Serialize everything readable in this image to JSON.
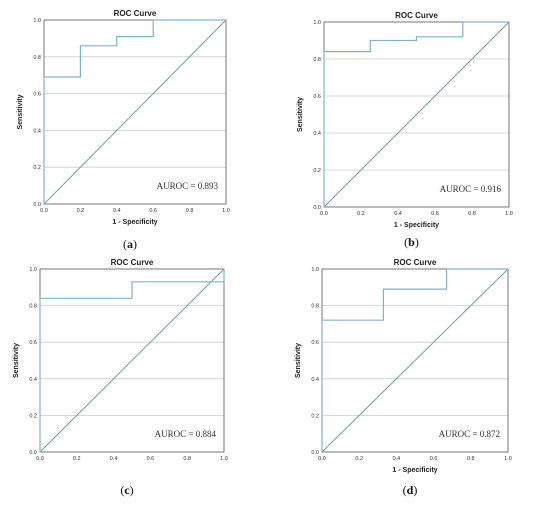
{
  "chart_data": [
    {
      "type": "line",
      "panel": "a",
      "title": "ROC Curve",
      "xlabel": "1 - Specificity",
      "ylabel": "Sensitivity",
      "xlim": [
        0,
        1
      ],
      "ylim": [
        0,
        1
      ],
      "xticks": [
        "0.0",
        "0.2",
        "0.4",
        "0.6",
        "0.8",
        "1.0"
      ],
      "yticks": [
        "0.0",
        "0.2",
        "0.4",
        "0.6",
        "0.8",
        "1.0"
      ],
      "grid": "horizontal",
      "roc": {
        "x": [
          0,
          0,
          0.2,
          0.2,
          0.4,
          0.4,
          0.6,
          0.6,
          1.0
        ],
        "y": [
          0,
          0.69,
          0.69,
          0.86,
          0.86,
          0.91,
          0.91,
          1.0,
          1.0
        ]
      },
      "reference": {
        "x": [
          0,
          1
        ],
        "y": [
          0,
          1
        ]
      },
      "annotation": "AUROC = 0.893",
      "caption_letter": "a"
    },
    {
      "type": "line",
      "panel": "b",
      "title": "ROC Curve",
      "xlabel": "1 - Specificity",
      "ylabel": "Sensitivity",
      "xlim": [
        0,
        1
      ],
      "ylim": [
        0,
        1
      ],
      "xticks": [
        "0.0",
        "0.2",
        "0.4",
        "0.6",
        "0.8",
        "1.0"
      ],
      "yticks": [
        "0.0",
        "0.2",
        "0.4",
        "0.6",
        "0.8",
        "1.0"
      ],
      "grid": "horizontal",
      "roc": {
        "x": [
          0,
          0,
          0.25,
          0.25,
          0.5,
          0.5,
          0.75,
          0.75,
          1.0
        ],
        "y": [
          0,
          0.84,
          0.84,
          0.9,
          0.9,
          0.92,
          0.92,
          1.0,
          1.0
        ]
      },
      "reference": {
        "x": [
          0,
          1
        ],
        "y": [
          0,
          1
        ]
      },
      "annotation": "AUROC = 0.916",
      "caption_letter": "b"
    },
    {
      "type": "line",
      "panel": "c",
      "title": "ROC Curve",
      "xlabel": "",
      "ylabel": "Sensitivity",
      "xlim": [
        0,
        1
      ],
      "ylim": [
        0,
        1
      ],
      "xticks": [
        "0.0",
        "0.2",
        "0.4",
        "0.6",
        "0.8",
        "1.0"
      ],
      "yticks": [
        "0.0",
        "0.2",
        "0.4",
        "0.6",
        "0.8",
        "1.0"
      ],
      "grid": "horizontal",
      "roc": {
        "x": [
          0,
          0,
          0.5,
          0.5,
          1.0,
          1.0
        ],
        "y": [
          0,
          0.84,
          0.84,
          0.93,
          0.93,
          1.0
        ]
      },
      "reference": {
        "x": [
          0,
          1
        ],
        "y": [
          0,
          1
        ]
      },
      "annotation": "AUROC = 0.884",
      "caption_letter": "c"
    },
    {
      "type": "line",
      "panel": "d",
      "title": "ROC Curve",
      "xlabel": "1 - Specificity",
      "ylabel": "Sensitivity",
      "xlim": [
        0,
        1
      ],
      "ylim": [
        0,
        1
      ],
      "xticks": [
        "0.0",
        "0.2",
        "0.4",
        "0.6",
        "0.8",
        "1.0"
      ],
      "yticks": [
        "0.0",
        "0.2",
        "0.4",
        "0.6",
        "0.8",
        "1.0"
      ],
      "grid": "horizontal",
      "roc": {
        "x": [
          0,
          0,
          0.33,
          0.33,
          0.67,
          0.67,
          1.0
        ],
        "y": [
          0,
          0.72,
          0.72,
          0.89,
          0.89,
          1.0,
          1.0
        ]
      },
      "reference": {
        "x": [
          0,
          1
        ],
        "y": [
          0,
          1
        ]
      },
      "annotation": "AUROC = 0.872",
      "caption_letter": "d"
    }
  ],
  "colors": {
    "roc_line": "#7fb3cc",
    "reference_line": "#6c9faa",
    "grid": "#cccccc",
    "frame": "#555555"
  }
}
